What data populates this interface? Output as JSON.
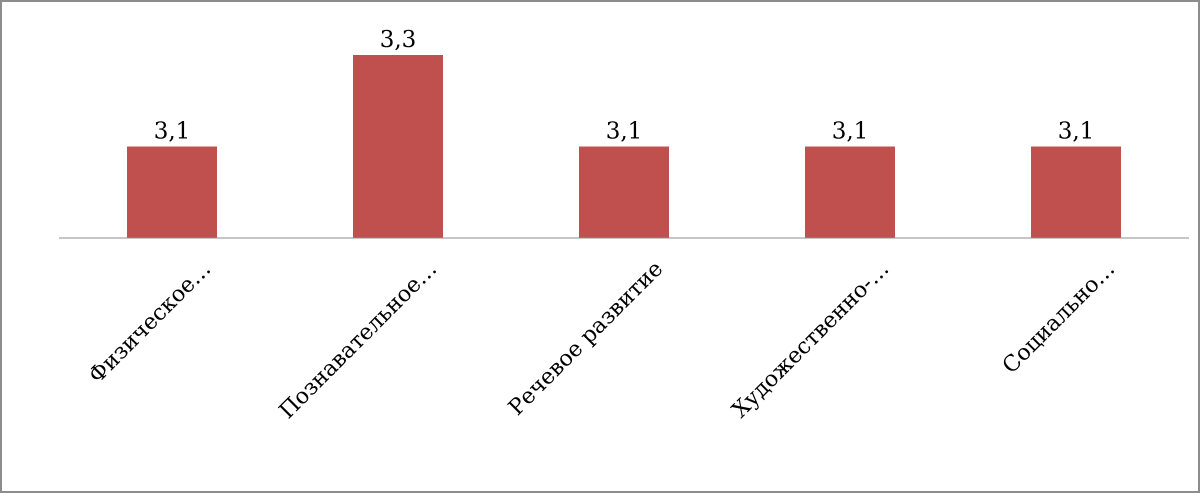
{
  "chart_data": {
    "type": "bar",
    "title": "",
    "xlabel": "",
    "ylabel": "",
    "categories": [
      "Физическое…",
      "Познавательное…",
      "Речевое развитие",
      "Художественно-…",
      "Социально…"
    ],
    "values": [
      3.1,
      3.3,
      3.1,
      3.1,
      3.1
    ],
    "value_labels": [
      "3,1",
      "3,3",
      "3,1",
      "3,1",
      "3,1"
    ],
    "ylim": [
      2.9,
      3.35
    ],
    "grid": false,
    "legend": "none",
    "colors": {
      "bar": "#c0504d",
      "axis": "#8c8c8c",
      "frame": "#8c8c8c"
    }
  }
}
